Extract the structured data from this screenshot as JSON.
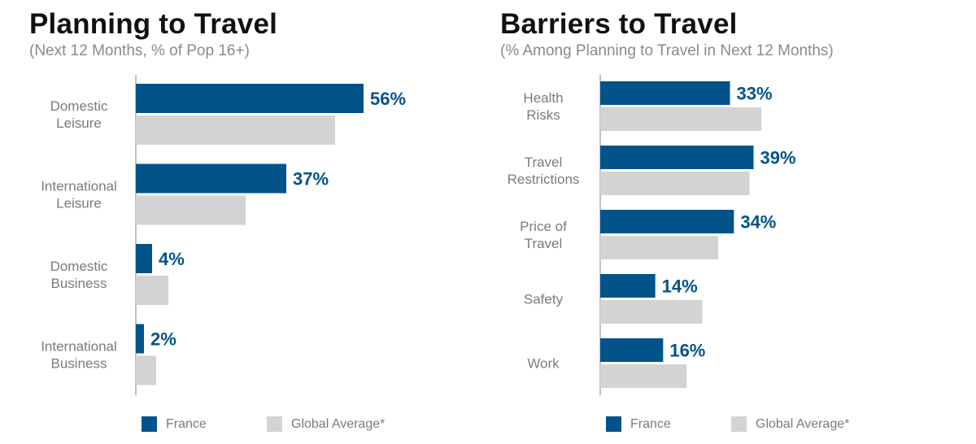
{
  "colors": {
    "france": "#02538a",
    "global": "#d3d3d4",
    "axis": "#9a9a9a"
  },
  "chart_data": [
    {
      "type": "bar",
      "orientation": "horizontal",
      "title": "Planning to Travel",
      "subtitle": "(Next 12 Months, % of Pop 16+)",
      "categories": [
        [
          "Domestic",
          "Leisure"
        ],
        [
          "International",
          "Leisure"
        ],
        [
          "Domestic",
          "Business"
        ],
        [
          "International",
          "Business"
        ]
      ],
      "series": [
        {
          "name": "France",
          "values": [
            56,
            37,
            4,
            2
          ],
          "labels": [
            "56%",
            "37%",
            "4%",
            "2%"
          ]
        },
        {
          "name": "Global Average*",
          "values": [
            49,
            27,
            8,
            5
          ]
        }
      ],
      "xlim": [
        0,
        70
      ],
      "grid": false,
      "legend": "bottom"
    },
    {
      "type": "bar",
      "orientation": "horizontal",
      "title": "Barriers to Travel",
      "subtitle": "(% Among Planning to Travel in Next 12 Months)",
      "categories": [
        [
          "Health",
          "Risks"
        ],
        [
          "Travel",
          "Restrictions"
        ],
        [
          "Price of",
          "Travel"
        ],
        [
          "Safety"
        ],
        [
          "Work"
        ]
      ],
      "series": [
        {
          "name": "France",
          "values": [
            33,
            39,
            34,
            14,
            16
          ],
          "labels": [
            "33%",
            "39%",
            "34%",
            "14%",
            "16%"
          ]
        },
        {
          "name": "Global Average*",
          "values": [
            41,
            38,
            30,
            26,
            22
          ]
        }
      ],
      "xlim": [
        0,
        60
      ],
      "grid": false,
      "legend": "bottom"
    }
  ]
}
